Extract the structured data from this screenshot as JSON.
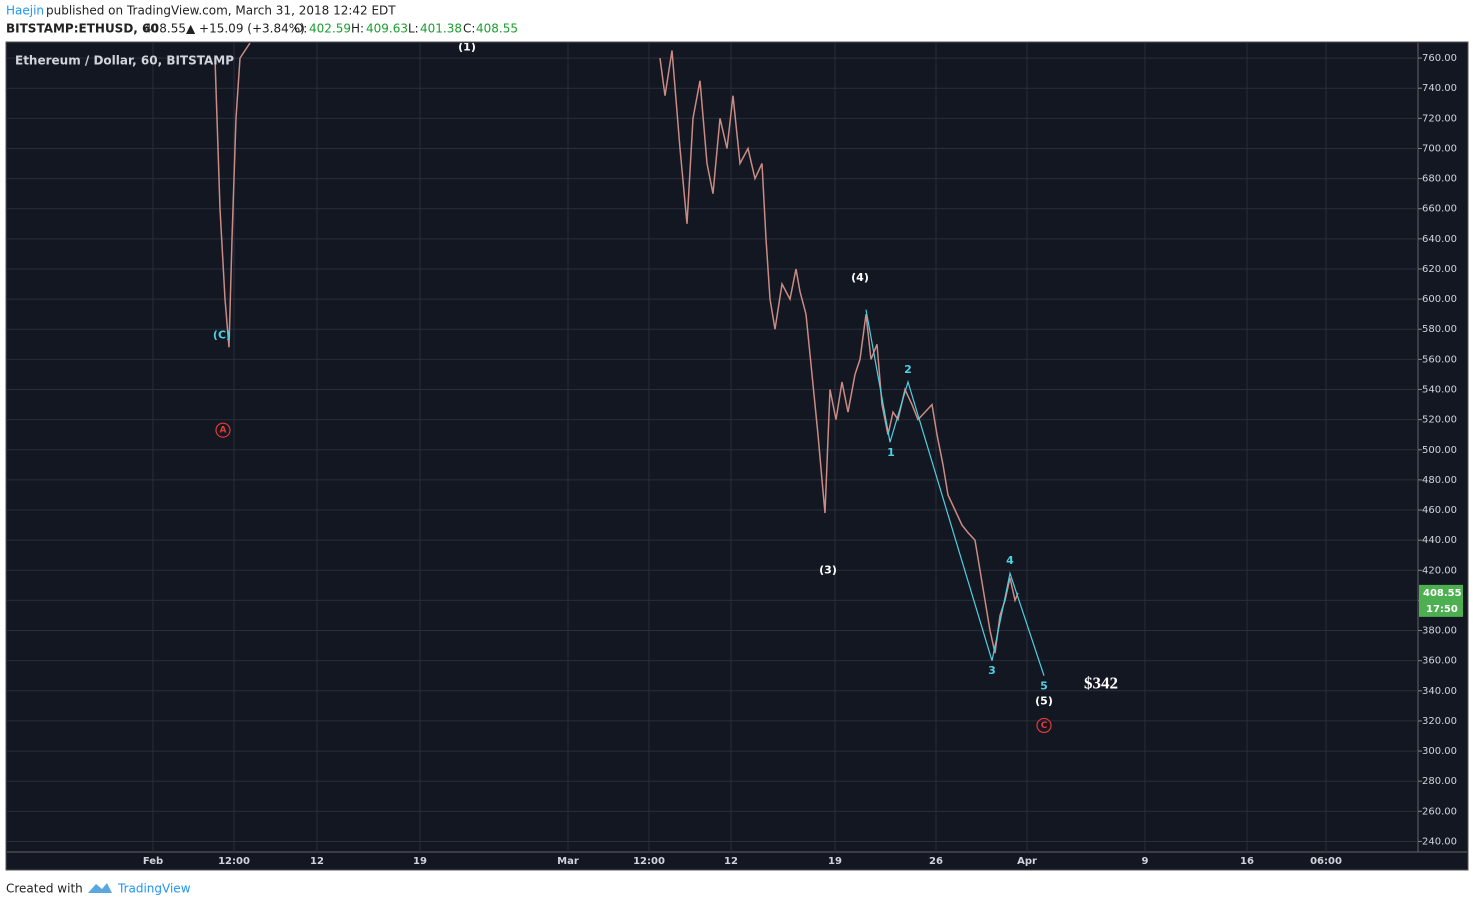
{
  "header": {
    "author": "Haejin",
    "published": "published on TradingView.com, March 31, 2018 12:42 EDT",
    "symbol": "BITSTAMP:ETHUSD, 60",
    "last": "408.55",
    "change": "▲ +15.09 (+3.84%)",
    "o_label": "O:",
    "o": "402.59",
    "h_label": "H:",
    "h": "409.63",
    "l_label": "L:",
    "l": "401.38",
    "c_label": "C:",
    "c": "408.55"
  },
  "footer": {
    "created": "Created with",
    "brand": "TradingView"
  },
  "chart_data": {
    "type": "line",
    "title": "Ethereum / Dollar, 60, BITSTAMP",
    "price_tag": "408.55",
    "countdown": "17:50",
    "xlim": [
      0,
      1411
    ],
    "ylim": [
      233,
      770
    ],
    "grid": true,
    "xticks": [
      {
        "value": 146,
        "label": "Feb"
      },
      {
        "value": 227,
        "label": "12:00"
      },
      {
        "value": 310,
        "label": "12"
      },
      {
        "value": 413,
        "label": "19"
      },
      {
        "value": 561,
        "label": "Mar"
      },
      {
        "value": 642,
        "label": "12:00"
      },
      {
        "value": 724,
        "label": "12"
      },
      {
        "value": 828,
        "label": "19"
      },
      {
        "value": 929,
        "label": "26"
      },
      {
        "value": 1020,
        "label": "Apr"
      },
      {
        "value": 1138,
        "label": "9"
      },
      {
        "value": 1240,
        "label": "16"
      },
      {
        "value": 1319,
        "label": "06:00"
      }
    ],
    "yticks": [
      {
        "value": 240,
        "label": "240.00"
      },
      {
        "value": 260,
        "label": "260.00"
      },
      {
        "value": 280,
        "label": "280.00"
      },
      {
        "value": 300,
        "label": "300.00"
      },
      {
        "value": 320,
        "label": "320.00"
      },
      {
        "value": 340,
        "label": "340.00"
      },
      {
        "value": 360,
        "label": "360.00"
      },
      {
        "value": 380,
        "label": "380.00"
      },
      {
        "value": 400,
        "label": "400.00"
      },
      {
        "value": 420,
        "label": "420.00"
      },
      {
        "value": 440,
        "label": "440.00"
      },
      {
        "value": 460,
        "label": "460.00"
      },
      {
        "value": 480,
        "label": "480.00"
      },
      {
        "value": 500,
        "label": "500.00"
      },
      {
        "value": 520,
        "label": "520.00"
      },
      {
        "value": 540,
        "label": "540.00"
      },
      {
        "value": 560,
        "label": "560.00"
      },
      {
        "value": 580,
        "label": "580.00"
      },
      {
        "value": 600,
        "label": "600.00"
      },
      {
        "value": 620,
        "label": "620.00"
      },
      {
        "value": 640,
        "label": "640.00"
      },
      {
        "value": 660,
        "label": "660.00"
      },
      {
        "value": 680,
        "label": "680.00"
      },
      {
        "value": 700,
        "label": "700.00"
      },
      {
        "value": 720,
        "label": "720.00"
      },
      {
        "value": 740,
        "label": "740.00"
      },
      {
        "value": 760,
        "label": "760.00"
      }
    ],
    "color": "#c98b84",
    "x": [
      208,
      213,
      218,
      222,
      225,
      229,
      233,
      243,
      500,
      653,
      658,
      665,
      673,
      680,
      686,
      693,
      700,
      706,
      713,
      720,
      726,
      733,
      741,
      748,
      755,
      759,
      763,
      768,
      775,
      783,
      789,
      793,
      799,
      805,
      811,
      815,
      818,
      823,
      829,
      835,
      841,
      848,
      853,
      859,
      864,
      870,
      875,
      881,
      886,
      891,
      898,
      905,
      911,
      918,
      925,
      930,
      936,
      941,
      948,
      955,
      961,
      968,
      973,
      978,
      983,
      988,
      993,
      998,
      1003,
      1008,
      1011
    ],
    "values": [
      760,
      660,
      600,
      568,
      640,
      720,
      760,
      770,
      null,
      760,
      735,
      765,
      700,
      650,
      720,
      745,
      690,
      670,
      720,
      700,
      735,
      690,
      700,
      680,
      690,
      640,
      600,
      580,
      610,
      600,
      620,
      605,
      590,
      550,
      510,
      480,
      458,
      540,
      520,
      545,
      525,
      550,
      560,
      590,
      560,
      570,
      530,
      510,
      525,
      520,
      540,
      530,
      520,
      525,
      530,
      510,
      490,
      470,
      460,
      450,
      445,
      440,
      420,
      400,
      380,
      365,
      390,
      400,
      415,
      400,
      405
    ],
    "overlay_color": "#4dd0e1",
    "overlay_x": [
      859,
      883,
      901,
      985,
      1003,
      1037
    ],
    "overlay_values": [
      593,
      505,
      545,
      360,
      418,
      350
    ],
    "annotations": [
      {
        "text": "(1)",
        "x": 460,
        "y": 767,
        "color": "#ffffff"
      },
      {
        "text": "(C)",
        "x": 215,
        "y": 576,
        "color": "#4dd0e1"
      },
      {
        "text": "A",
        "x": 216,
        "y": 513,
        "color": "#e53935",
        "circled": true
      },
      {
        "text": "(4)",
        "x": 853,
        "y": 614,
        "color": "#ffffff"
      },
      {
        "text": "2",
        "x": 901,
        "y": 553,
        "color": "#4dd0e1"
      },
      {
        "text": "1",
        "x": 884,
        "y": 498,
        "color": "#4dd0e1"
      },
      {
        "text": "(3)",
        "x": 821,
        "y": 420,
        "color": "#ffffff"
      },
      {
        "text": "4",
        "x": 1003,
        "y": 426,
        "color": "#4dd0e1"
      },
      {
        "text": "3",
        "x": 985,
        "y": 353,
        "color": "#4dd0e1"
      },
      {
        "text": "5",
        "x": 1037,
        "y": 343,
        "color": "#4dd0e1"
      },
      {
        "text": "(5)",
        "x": 1037,
        "y": 333,
        "color": "#ffffff"
      },
      {
        "text": "C",
        "x": 1037,
        "y": 317,
        "color": "#e53935",
        "circled": true
      },
      {
        "text": "$342",
        "x": 1094,
        "y": 344,
        "color": "#ffffff",
        "big": true
      }
    ]
  }
}
